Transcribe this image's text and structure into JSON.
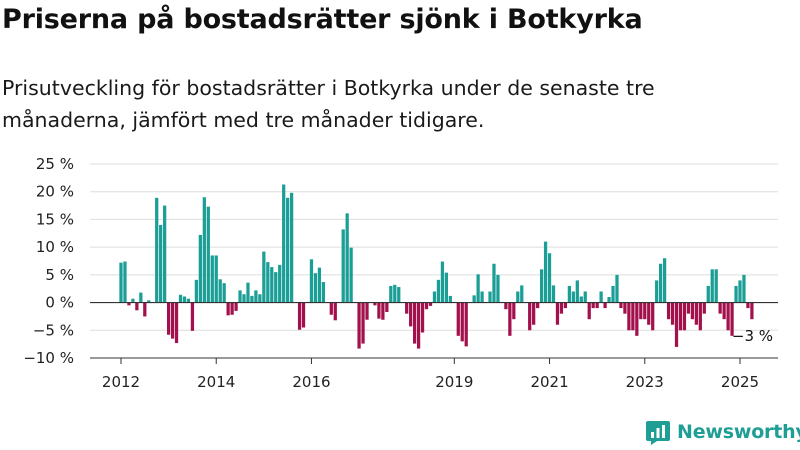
{
  "title": "Priserna på bostadsrätter sjönk i Botkyrka",
  "subtitle": "Prisutveckling för bostadsrätter i Botkyrka under de senaste tre månaderna, jämfört med tre månader tidigare.",
  "colors": {
    "positive": "#1a9e96",
    "negative": "#a3114d",
    "grid": "#dddddd",
    "axis": "#333333",
    "brand": "#1f9e95"
  },
  "brand": {
    "name": "Newsworthy",
    "icon": "newsworthy-logo-icon"
  },
  "chart_data": {
    "type": "bar",
    "title": "Priserna på bostadsrätter sjönk i Botkyrka",
    "ylabel": "",
    "xlabel": "",
    "y_unit": "%",
    "ylim": [
      -10,
      25
    ],
    "yticks": [
      25,
      20,
      15,
      10,
      5,
      0,
      -5,
      -10
    ],
    "ytick_labels": [
      "25 %",
      "20 %",
      "15 %",
      "10 %",
      "5 %",
      "0 %",
      "−5 %",
      "−10 %"
    ],
    "xticks": [
      2012,
      2014,
      2016,
      2019,
      2021,
      2023,
      2025
    ],
    "xtick_labels": [
      "2012",
      "2014",
      "2016",
      "2019",
      "2021",
      "2023",
      "2025"
    ],
    "x_range": [
      2011.5,
      2025.25
    ],
    "grid": true,
    "legend": "none",
    "annotation": {
      "text": "−3 %",
      "value": -3,
      "note": "latest"
    },
    "series": [
      {
        "start": 2012.0,
        "step_months": 1,
        "values": [
          7.2,
          7.4,
          -0.5,
          0.7,
          -1.4,
          1.8,
          -2.5,
          0.4,
          0,
          18.9,
          14,
          17.5,
          -5.8,
          -6.5,
          -7.3,
          1.4,
          1.1,
          0.7,
          -5.1,
          4.1,
          12.2,
          19.0,
          17.3,
          8.5,
          8.5,
          4.2,
          3.5,
          -2.3,
          -2.2,
          -1.5,
          2.2,
          1.5,
          3.6,
          1.2,
          2.2,
          1.5,
          9.2,
          7.3,
          6.4,
          5.5,
          6.8,
          21.3,
          18.9,
          19.8,
          0,
          -4.9,
          -4.5,
          0,
          7.8,
          5.3,
          6.3,
          3.7,
          0,
          -2.2,
          -3.2,
          0,
          13.2,
          16.1,
          9.9,
          0,
          -8.3,
          -7.4,
          -3.1,
          0,
          -0.5,
          -2.9,
          -3.1,
          -1.7,
          3.0,
          3.2,
          2.8,
          0,
          -2.0,
          -4.3,
          -7.4,
          -8.3,
          -5.4,
          -1.2,
          -0.6,
          2.0,
          4.1,
          7.4,
          5.4,
          1.2,
          0,
          -6.0,
          -7.0,
          -7.9,
          0,
          1.3,
          5.1,
          2.0,
          0,
          2.0,
          7.0,
          5.0,
          0,
          -1.2,
          -6.0,
          -3.0,
          2.0,
          3.1,
          0,
          -5.0,
          -4.0,
          -1.0,
          6.0,
          11.0,
          8.9,
          3.1,
          -4.0,
          -2.0,
          -1.0,
          3.0,
          2.0,
          4.0,
          1.1,
          2.0,
          -3.0,
          -1.0,
          -1.0,
          2.0,
          -1.0,
          1.0,
          3.0,
          5.0,
          -1.0,
          -2.0,
          -5.0,
          -5.0,
          -6.0,
          -3.0,
          -3.0,
          -4.0,
          -5.0,
          4.0,
          7.0,
          8.0,
          -3.0,
          -4.0,
          -8.0,
          -5.0,
          -5.0,
          -2.0,
          -3.0,
          -4.0,
          -5.0,
          -2.0,
          3.0,
          6.0,
          6.0,
          -2.0,
          -3.0,
          -5.0,
          -6.0,
          3.0,
          4.0,
          5.0,
          -1.0,
          -3.0
        ]
      }
    ]
  }
}
